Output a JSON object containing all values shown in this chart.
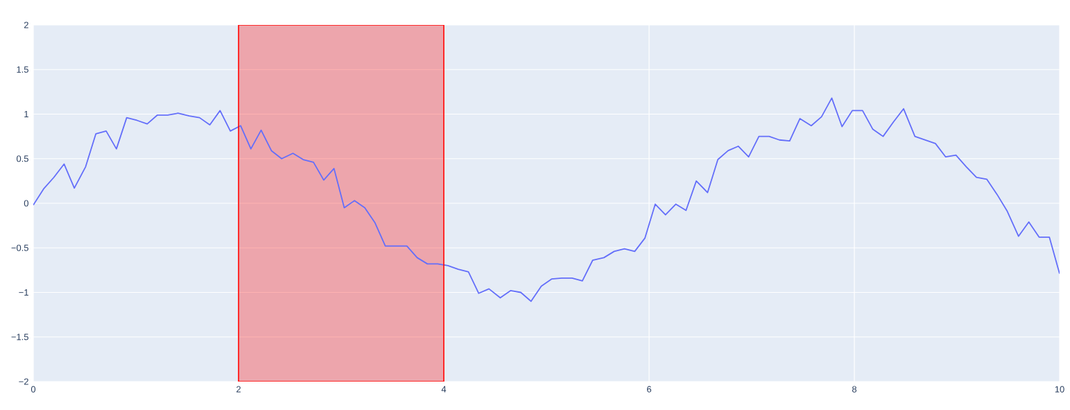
{
  "chart_data": {
    "type": "line",
    "x": [
      0,
      0.1,
      0.2,
      0.3,
      0.4,
      0.51,
      0.61,
      0.71,
      0.81,
      0.91,
      1.01,
      1.11,
      1.21,
      1.31,
      1.41,
      1.52,
      1.62,
      1.72,
      1.82,
      1.92,
      2.02,
      2.12,
      2.22,
      2.32,
      2.42,
      2.53,
      2.63,
      2.73,
      2.83,
      2.93,
      3.03,
      3.13,
      3.23,
      3.33,
      3.43,
      3.54,
      3.64,
      3.74,
      3.84,
      3.94,
      4.04,
      4.14,
      4.24,
      4.34,
      4.44,
      4.55,
      4.65,
      4.75,
      4.85,
      4.95,
      5.05,
      5.15,
      5.25,
      5.35,
      5.45,
      5.56,
      5.66,
      5.76,
      5.86,
      5.96,
      6.06,
      6.16,
      6.26,
      6.36,
      6.46,
      6.57,
      6.67,
      6.77,
      6.87,
      6.97,
      7.07,
      7.17,
      7.27,
      7.37,
      7.47,
      7.58,
      7.68,
      7.78,
      7.88,
      7.98,
      8.08,
      8.18,
      8.28,
      8.38,
      8.48,
      8.59,
      8.69,
      8.79,
      8.89,
      8.99,
      9.09,
      9.19,
      9.29,
      9.39,
      9.49,
      9.6,
      9.7,
      9.8,
      9.9,
      10
    ],
    "series": [
      {
        "color": "#636efa",
        "values": [
          -0.02,
          0.16,
          0.29,
          0.44,
          0.17,
          0.41,
          0.78,
          0.81,
          0.61,
          0.96,
          0.93,
          0.89,
          0.99,
          0.99,
          1.01,
          0.98,
          0.96,
          0.88,
          1.04,
          0.81,
          0.87,
          0.61,
          0.82,
          0.59,
          0.5,
          0.56,
          0.49,
          0.46,
          0.26,
          0.39,
          -0.05,
          0.03,
          -0.05,
          -0.22,
          -0.48,
          -0.48,
          -0.48,
          -0.61,
          -0.68,
          -0.68,
          -0.7,
          -0.74,
          -0.77,
          -1.01,
          -0.96,
          -1.06,
          -0.98,
          -1.0,
          -1.1,
          -0.93,
          -0.85,
          -0.84,
          -0.84,
          -0.87,
          -0.64,
          -0.61,
          -0.54,
          -0.51,
          -0.54,
          -0.39,
          -0.01,
          -0.13,
          -0.01,
          -0.08,
          0.25,
          0.12,
          0.49,
          0.59,
          0.64,
          0.52,
          0.75,
          0.75,
          0.71,
          0.7,
          0.95,
          0.87,
          0.97,
          1.18,
          0.86,
          1.04,
          1.04,
          0.83,
          0.75,
          0.91,
          1.06,
          0.75,
          0.71,
          0.67,
          0.52,
          0.54,
          0.41,
          0.29,
          0.27,
          0.1,
          -0.09,
          -0.37,
          -0.21,
          -0.38,
          -0.38,
          -0.79
        ]
      }
    ],
    "xlim": [
      0,
      10
    ],
    "ylim": [
      -2,
      2
    ],
    "xticks": [
      0,
      2,
      4,
      6,
      8,
      10
    ],
    "yticks": [
      {
        "value": -2,
        "label": "−2"
      },
      {
        "value": -1.5,
        "label": "−1.5"
      },
      {
        "value": -1,
        "label": "−1"
      },
      {
        "value": -0.5,
        "label": "−0.5"
      },
      0,
      0.5,
      1,
      1.5,
      2
    ],
    "bands": [
      {
        "axis": "x",
        "from": 2,
        "to": 4,
        "color": "#ff0000"
      }
    ],
    "grid": true,
    "marker": "none",
    "line_style": "solid"
  }
}
